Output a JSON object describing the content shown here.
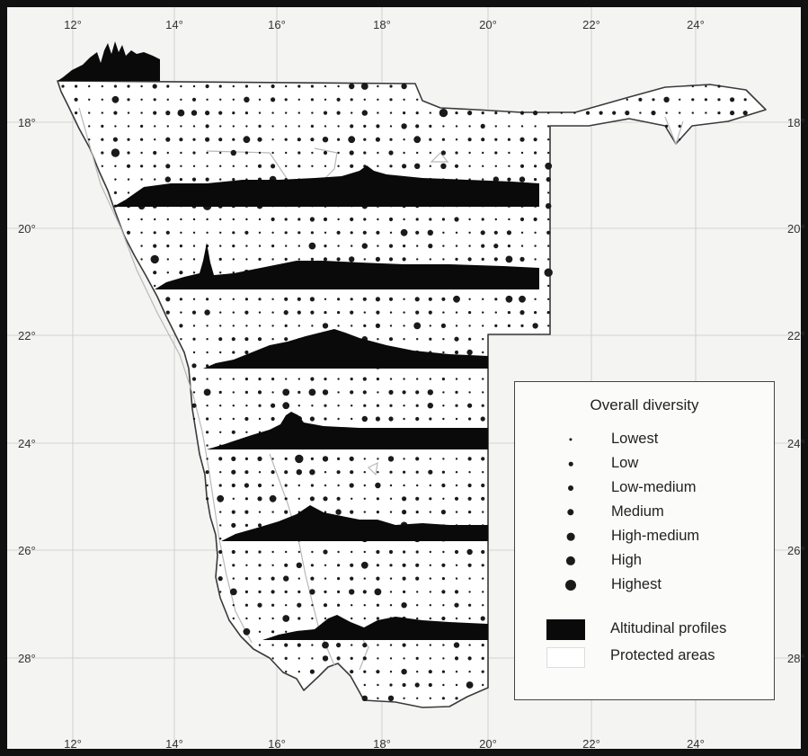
{
  "map": {
    "latitude_ticks": [
      "18°",
      "20°",
      "22°",
      "24°",
      "26°",
      "28°"
    ],
    "longitude_ticks": [
      "12°",
      "14°",
      "16°",
      "18°",
      "20°",
      "22°",
      "24°"
    ],
    "colors": {
      "frame": "#111111",
      "background": "#f4f4f3",
      "land": "#ffffff",
      "graticule": "#c8c8c8",
      "boundary": "#3a3a3a",
      "profile": "#0a0a0a",
      "dot": "#1a1a1a",
      "protected_area_edge": "#b8b8b8"
    }
  },
  "legend": {
    "title": "Overall diversity",
    "classes": [
      {
        "label": "Lowest",
        "level": 1
      },
      {
        "label": "Low",
        "level": 2
      },
      {
        "label": "Low-medium",
        "level": 3
      },
      {
        "label": "Medium",
        "level": 4
      },
      {
        "label": "High-medium",
        "level": 5
      },
      {
        "label": "High",
        "level": 6
      },
      {
        "label": "Highest",
        "level": 7
      }
    ],
    "profiles_label": "Altitudinal profiles",
    "protected_label": "Protected areas"
  }
}
